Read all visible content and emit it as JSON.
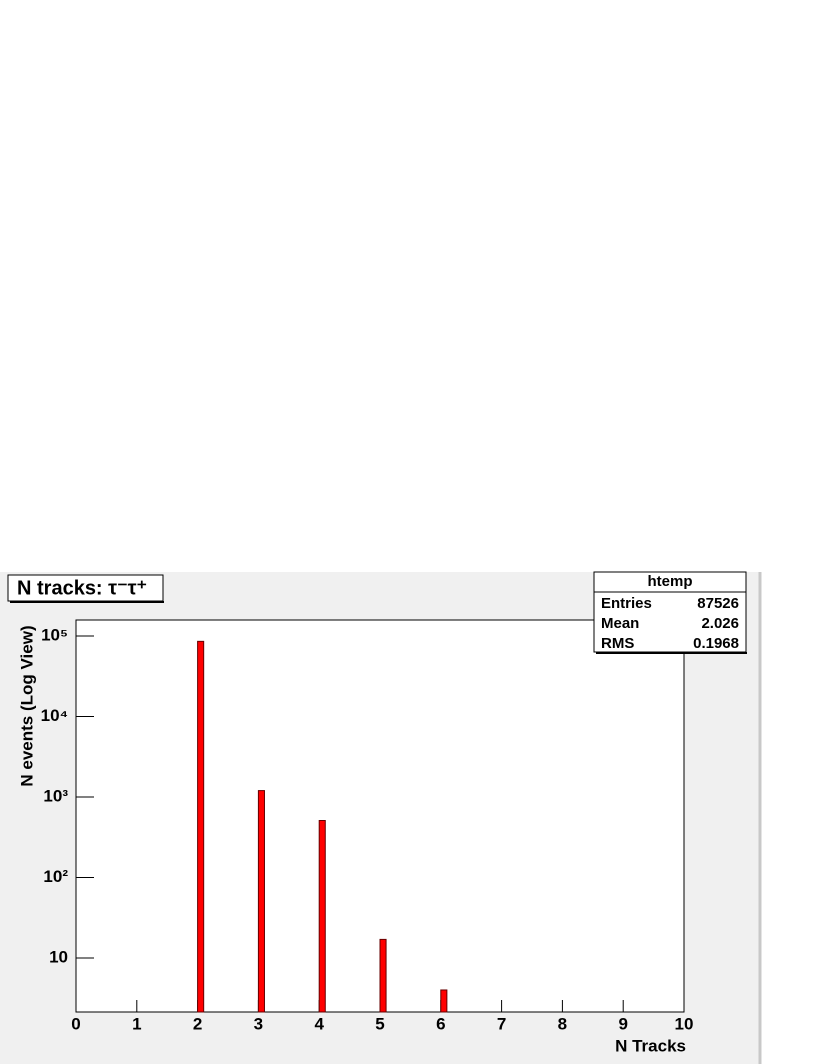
{
  "chart_data": {
    "type": "histogram",
    "title": "N tracks: τ⁻τ⁺",
    "x_label": "N Tracks",
    "y_label": "N events (Log View)",
    "bins": [
      0,
      0.1,
      0.2,
      0.3,
      0.4,
      0.5,
      0.6,
      0.7,
      0.8,
      0.9,
      1,
      1.1,
      1.2,
      1.3,
      1.4,
      1.5,
      1.6,
      1.7,
      1.8,
      1.9,
      2,
      2.1,
      2.2,
      2.3,
      2.4,
      2.5,
      2.6,
      2.7,
      2.8,
      2.9,
      3,
      3.1,
      3.2,
      3.3,
      3.4,
      3.5,
      3.6,
      3.7,
      3.8,
      3.9,
      4,
      4.1,
      4.2,
      4.3,
      4.4,
      4.5,
      4.6,
      4.7,
      4.8,
      4.9,
      5,
      5.1,
      5.2,
      5.3,
      5.4,
      5.5,
      5.6,
      5.7,
      5.8,
      5.9,
      6,
      6.1,
      6.2,
      6.3,
      6.4,
      6.5,
      6.6,
      6.7,
      6.8,
      6.9,
      7,
      7.1,
      7.2,
      7.3,
      7.4,
      7.5,
      7.6,
      7.7,
      7.8,
      7.9,
      8,
      8.1,
      8.2,
      8.3,
      8.4,
      8.5,
      8.6,
      8.7,
      8.8,
      8.9,
      9,
      9.1,
      9.2,
      9.3,
      9.4,
      9.5,
      9.6,
      9.7,
      9.8,
      9.9,
      10
    ],
    "values": [
      0,
      0,
      0,
      0,
      0,
      0,
      0,
      0,
      0,
      0,
      0,
      0,
      0,
      0,
      0,
      0,
      0,
      0,
      0,
      0,
      85795,
      0,
      0,
      0,
      0,
      0,
      0,
      0,
      0,
      0,
      1200,
      0,
      0,
      0,
      0,
      0,
      0,
      0,
      0,
      0,
      510,
      0,
      0,
      0,
      0,
      0,
      0,
      0,
      0,
      0,
      17,
      0,
      0,
      0,
      0,
      0,
      0,
      0,
      0,
      0,
      4,
      0,
      0,
      0,
      0,
      0,
      0,
      0,
      0,
      0,
      0,
      0,
      0,
      0,
      0,
      0,
      0,
      0,
      0,
      0,
      0,
      0,
      0,
      0,
      0,
      0,
      0,
      0,
      0,
      0,
      0,
      0,
      0,
      0,
      0,
      0,
      0,
      0,
      0,
      0
    ],
    "color": "#ff0000",
    "log_y": true,
    "xlim": [
      0,
      10
    ],
    "xticks": [
      0,
      1,
      2,
      3,
      4,
      5,
      6,
      7,
      8,
      9,
      10
    ],
    "ylim": [
      2.13,
      158000
    ],
    "yticks": [
      {
        "value": 10,
        "label": "10"
      },
      {
        "value": 100,
        "label": "10²"
      },
      {
        "value": 1000,
        "label": "10³"
      },
      {
        "value": 10000,
        "label": "10⁴"
      },
      {
        "value": 100000,
        "label": "10⁵"
      }
    ],
    "stats": {
      "title": "htemp",
      "rows": [
        {
          "label": "Entries",
          "value": 87526
        },
        {
          "label": "Mean",
          "value": 2.026
        },
        {
          "label": "RMS",
          "value": 0.1968
        }
      ]
    }
  }
}
